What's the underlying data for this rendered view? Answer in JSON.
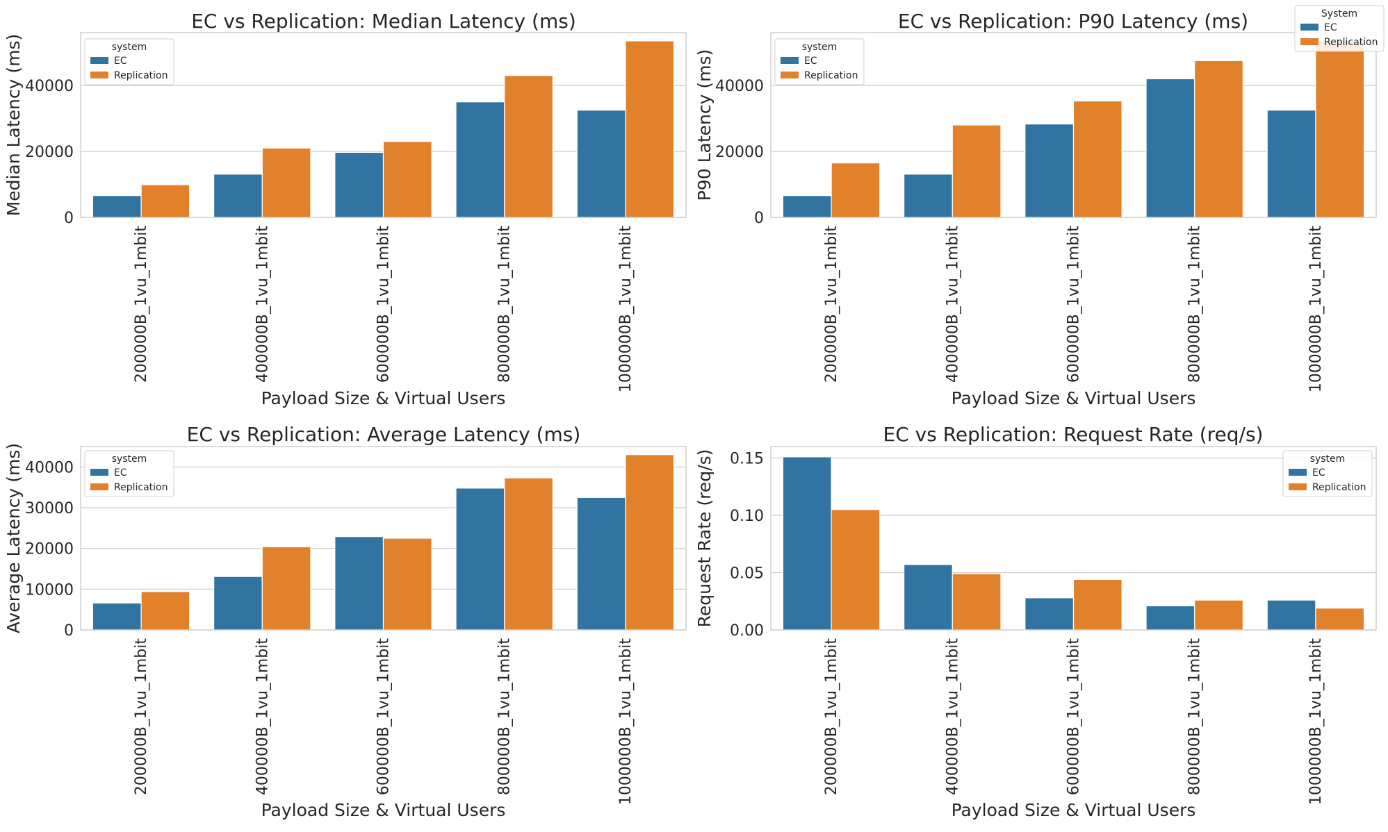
{
  "figure": {
    "legend_title": "System",
    "legend_entries": [
      "EC",
      "Replication"
    ]
  },
  "chart_data": [
    {
      "type": "bar",
      "title": "EC vs Replication: Median Latency (ms)",
      "xlabel": "Payload Size & Virtual Users",
      "ylabel": "Median Latency (ms)",
      "categories": [
        "200000B_1vu_1mbit",
        "400000B_1vu_1mbit",
        "600000B_1vu_1mbit",
        "800000B_1vu_1mbit",
        "1000000B_1vu_1mbit"
      ],
      "series": [
        {
          "name": "EC",
          "color": "#3274a1",
          "values": [
            6600,
            13100,
            19700,
            35000,
            32500
          ]
        },
        {
          "name": "Replication",
          "color": "#e1812c",
          "values": [
            9900,
            21000,
            23000,
            43000,
            53500
          ]
        }
      ],
      "ylim": [
        0,
        56000
      ],
      "yticks": [
        0,
        20000,
        40000
      ],
      "ytick_labels": [
        "0",
        "20000",
        "40000"
      ],
      "grid": true,
      "legend_title": "system",
      "legend_position": "top-left"
    },
    {
      "type": "bar",
      "title": "EC vs Replication: P90 Latency (ms)",
      "xlabel": "Payload Size & Virtual Users",
      "ylabel": "P90 Latency (ms)",
      "categories": [
        "200000B_1vu_1mbit",
        "400000B_1vu_1mbit",
        "600000B_1vu_1mbit",
        "800000B_1vu_1mbit",
        "1000000B_1vu_1mbit"
      ],
      "series": [
        {
          "name": "EC",
          "color": "#3274a1",
          "values": [
            6600,
            13100,
            28300,
            42000,
            32500
          ]
        },
        {
          "name": "Replication",
          "color": "#e1812c",
          "values": [
            16500,
            28000,
            35300,
            47500,
            53500
          ]
        }
      ],
      "ylim": [
        0,
        56000
      ],
      "yticks": [
        0,
        20000,
        40000
      ],
      "ytick_labels": [
        "0",
        "20000",
        "40000"
      ],
      "grid": true,
      "legend_title": "system",
      "legend_position": "top-left"
    },
    {
      "type": "bar",
      "title": "EC vs Replication: Average Latency (ms)",
      "xlabel": "Payload Size & Virtual Users",
      "ylabel": "Average Latency (ms)",
      "categories": [
        "200000B_1vu_1mbit",
        "400000B_1vu_1mbit",
        "600000B_1vu_1mbit",
        "800000B_1vu_1mbit",
        "1000000B_1vu_1mbit"
      ],
      "series": [
        {
          "name": "EC",
          "color": "#3274a1",
          "values": [
            6600,
            13100,
            22900,
            34800,
            32500
          ]
        },
        {
          "name": "Replication",
          "color": "#e1812c",
          "values": [
            9400,
            20400,
            22500,
            37300,
            43000
          ]
        }
      ],
      "ylim": [
        0,
        45000
      ],
      "yticks": [
        0,
        10000,
        20000,
        30000,
        40000
      ],
      "ytick_labels": [
        "0",
        "10000",
        "20000",
        "30000",
        "40000"
      ],
      "grid": true,
      "legend_title": "system",
      "legend_position": "top-left"
    },
    {
      "type": "bar",
      "title": "EC vs Replication: Request Rate (req/s)",
      "xlabel": "Payload Size & Virtual Users",
      "ylabel": "Request Rate (req/s)",
      "categories": [
        "200000B_1vu_1mbit",
        "400000B_1vu_1mbit",
        "600000B_1vu_1mbit",
        "800000B_1vu_1mbit",
        "1000000B_1vu_1mbit"
      ],
      "series": [
        {
          "name": "EC",
          "color": "#3274a1",
          "values": [
            0.151,
            0.057,
            0.028,
            0.021,
            0.026
          ]
        },
        {
          "name": "Replication",
          "color": "#e1812c",
          "values": [
            0.105,
            0.049,
            0.044,
            0.026,
            0.019
          ]
        }
      ],
      "ylim": [
        0,
        0.16
      ],
      "yticks": [
        0,
        0.05,
        0.1,
        0.15
      ],
      "ytick_labels": [
        "0.00",
        "0.05",
        "0.10",
        "0.15"
      ],
      "grid": true,
      "legend_title": "system",
      "legend_position": "top-right"
    }
  ]
}
